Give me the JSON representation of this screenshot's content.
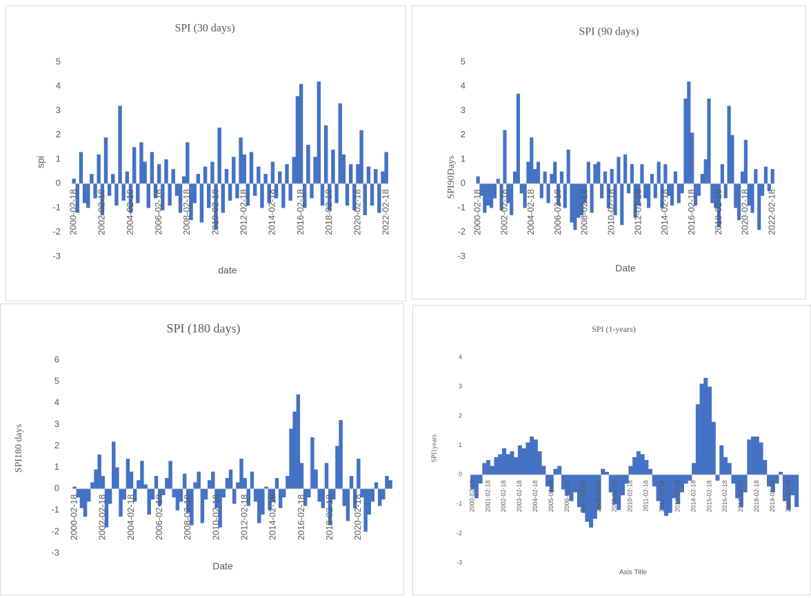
{
  "chart_data": [
    {
      "type": "bar",
      "title": "SPI (30 days)",
      "x_label": "date",
      "y_label": "spi",
      "color": "#4472c4",
      "ylim": [
        -3,
        5
      ],
      "yticks": [
        -3,
        -2,
        -1,
        0,
        1,
        2,
        3,
        4,
        5
      ],
      "categories": [
        "2000-02-18",
        null,
        null,
        null,
        null,
        null,
        null,
        null,
        "2002-02-18",
        null,
        null,
        null,
        null,
        null,
        null,
        null,
        "2004-02-18",
        null,
        null,
        null,
        null,
        null,
        null,
        null,
        "2006-02-18",
        null,
        null,
        null,
        null,
        null,
        null,
        null,
        "2008-02-18",
        null,
        null,
        null,
        null,
        null,
        null,
        null,
        "2010-02-18",
        null,
        null,
        null,
        null,
        null,
        null,
        null,
        "2012-02-18",
        null,
        null,
        null,
        null,
        null,
        null,
        null,
        "2014-02-18",
        null,
        null,
        null,
        null,
        null,
        null,
        null,
        "2016-02-18",
        null,
        null,
        null,
        null,
        null,
        null,
        null,
        "2018-02-18",
        null,
        null,
        null,
        null,
        null,
        null,
        null,
        "2020-02-18",
        null,
        null,
        null,
        null,
        null,
        null,
        null,
        "2022-02-18"
      ],
      "values": [
        0.2,
        -1.2,
        1.3,
        -0.8,
        -1.0,
        0.4,
        -0.6,
        1.2,
        -1.3,
        1.9,
        -0.5,
        0.4,
        -0.9,
        3.2,
        -0.7,
        0.5,
        -1.2,
        1.5,
        -0.8,
        1.7,
        0.9,
        -1.0,
        1.3,
        -0.6,
        0.8,
        -1.1,
        1.0,
        -0.9,
        0.6,
        -0.5,
        -1.2,
        0.3,
        1.7,
        -1.5,
        -0.8,
        0.4,
        -1.6,
        0.7,
        -1.0,
        0.9,
        -1.9,
        2.3,
        -1.2,
        0.6,
        -0.7,
        1.1,
        -0.6,
        1.9,
        1.2,
        -0.9,
        1.3,
        -0.5,
        0.7,
        -1.0,
        0.4,
        -0.8,
        0.9,
        -0.6,
        0.5,
        -1.0,
        0.8,
        -0.7,
        1.1,
        3.6,
        4.1,
        -1.0,
        1.6,
        -0.6,
        1.1,
        4.2,
        -0.9,
        2.4,
        -1.1,
        1.4,
        -0.8,
        3.3,
        1.2,
        -0.9,
        0.8,
        -1.1,
        0.8,
        2.2,
        -1.3,
        0.7,
        -0.9,
        0.6,
        -1.2,
        0.5,
        1.3
      ]
    },
    {
      "type": "bar",
      "title": "SPI (90 days)",
      "x_label": "Date",
      "y_label": "SPI90Days",
      "color": "#4472c4",
      "ylim": [
        -3,
        5
      ],
      "yticks": [
        -3,
        -2,
        -1,
        0,
        1,
        2,
        3,
        4,
        5
      ],
      "categories": [
        "2000-02-18",
        null,
        null,
        null,
        null,
        null,
        null,
        null,
        "2002-02-18",
        null,
        null,
        null,
        null,
        null,
        null,
        null,
        "2004-02-18",
        null,
        null,
        null,
        null,
        null,
        null,
        null,
        "2006-02-18",
        null,
        null,
        null,
        null,
        null,
        null,
        null,
        "2008-02-18",
        null,
        null,
        null,
        null,
        null,
        null,
        null,
        "2010-02-18",
        null,
        null,
        null,
        null,
        null,
        null,
        null,
        "2012-02-18",
        null,
        null,
        null,
        null,
        null,
        null,
        null,
        "2014-02-18",
        null,
        null,
        null,
        null,
        null,
        null,
        null,
        "2016-02-18",
        null,
        null,
        null,
        null,
        null,
        null,
        null,
        "2018-02-18",
        null,
        null,
        null,
        null,
        null,
        null,
        null,
        "2020-02-18",
        null,
        null,
        null,
        null,
        null,
        null,
        null,
        "2022-02-18"
      ],
      "values": [
        0.3,
        -0.5,
        -1.2,
        -0.9,
        -1.0,
        -0.6,
        0.2,
        -1.1,
        2.2,
        -0.8,
        -1.3,
        0.5,
        3.7,
        -0.4,
        -1.0,
        0.9,
        1.9,
        0.6,
        0.9,
        -0.6,
        0.5,
        -0.8,
        0.4,
        0.9,
        -0.9,
        0.5,
        -1.0,
        1.4,
        -1.6,
        -1.9,
        -1.4,
        -1.3,
        -0.8,
        0.9,
        -1.2,
        0.8,
        0.9,
        -0.6,
        0.5,
        -1.0,
        0.6,
        -1.3,
        1.1,
        -1.7,
        1.2,
        -0.4,
        0.8,
        -1.4,
        -0.9,
        0.8,
        -0.6,
        -1.0,
        0.4,
        -0.6,
        0.9,
        -1.0,
        0.8,
        -0.5,
        -0.9,
        0.5,
        -0.8,
        -0.4,
        3.5,
        4.2,
        2.1,
        -0.9,
        -0.5,
        0.4,
        1.0,
        3.5,
        -0.8,
        -1.0,
        -1.8,
        0.8,
        -0.6,
        3.2,
        2.0,
        -1.0,
        -1.5,
        0.5,
        1.8,
        -0.9,
        -1.2,
        0.6,
        -1.9,
        -0.5,
        0.7,
        -0.3,
        0.6
      ]
    },
    {
      "type": "bar",
      "title": "SPI (180 days)",
      "x_label": "Date",
      "y_label": "SPI180 days",
      "color": "#4472c4",
      "ylim": [
        -3,
        6
      ],
      "yticks": [
        -3,
        -2,
        -1,
        0,
        1,
        2,
        3,
        4,
        5,
        6
      ],
      "categories": [
        "2000-02-18",
        null,
        null,
        null,
        null,
        null,
        null,
        null,
        "2002-02-18",
        null,
        null,
        null,
        null,
        null,
        null,
        null,
        "2004-02-18",
        null,
        null,
        null,
        null,
        null,
        null,
        null,
        "2006-02-18",
        null,
        null,
        null,
        null,
        null,
        null,
        null,
        "2008-02-18",
        null,
        null,
        null,
        null,
        null,
        null,
        null,
        "2010-02-18",
        null,
        null,
        null,
        null,
        null,
        null,
        null,
        "2012-02-18",
        null,
        null,
        null,
        null,
        null,
        null,
        null,
        "2014-02-18",
        null,
        null,
        null,
        null,
        null,
        null,
        null,
        "2016-02-18",
        null,
        null,
        null,
        null,
        null,
        null,
        null,
        "2018-02-18",
        null,
        null,
        null,
        null,
        null,
        null,
        null,
        "2020-02-18",
        null,
        null,
        null,
        null,
        null,
        null,
        null,
        null,
        null
      ],
      "values": [
        0.1,
        -0.4,
        -0.9,
        -1.3,
        -0.6,
        0.3,
        0.9,
        1.6,
        0.6,
        -1.8,
        -0.7,
        2.2,
        1.0,
        -1.3,
        -0.5,
        1.4,
        0.8,
        -0.6,
        0.4,
        1.3,
        0.2,
        -1.2,
        -0.5,
        0.6,
        -0.8,
        -0.3,
        0.5,
        1.3,
        -0.4,
        -1.0,
        -0.6,
        0.7,
        -1.1,
        -1.7,
        0.3,
        0.8,
        -1.6,
        -0.5,
        0.4,
        0.8,
        -0.9,
        -1.8,
        -0.4,
        0.5,
        0.9,
        -0.7,
        0.3,
        1.4,
        0.5,
        -0.8,
        0.8,
        -0.6,
        -1.6,
        -1.2,
        0.1,
        -1.0,
        -0.6,
        0.5,
        -0.9,
        -0.4,
        0.6,
        2.8,
        3.6,
        4.4,
        1.2,
        -0.8,
        -0.4,
        2.4,
        0.9,
        -0.6,
        -0.9,
        1.2,
        -1.7,
        -0.5,
        2.0,
        3.2,
        -0.8,
        -1.5,
        0.6,
        -0.9,
        1.4,
        -0.4,
        -2.0,
        -1.2,
        -0.6,
        0.3,
        -0.8,
        -0.5,
        0.6,
        0.4
      ]
    },
    {
      "type": "bar",
      "title": "SPI (1-years)",
      "x_label": "Axis Title",
      "y_label": "SPI1years",
      "color": "#4472c4",
      "ylim": [
        -3,
        4
      ],
      "yticks": [
        -3,
        -2,
        -1,
        0,
        1,
        2,
        3,
        4
      ],
      "categories": [
        "2000-02-18",
        null,
        null,
        null,
        "2001-02-18",
        null,
        null,
        null,
        "2002-02-18",
        null,
        null,
        null,
        "2003-02-18",
        null,
        null,
        null,
        "2004-02-18",
        null,
        null,
        null,
        "2005-02-18",
        null,
        null,
        null,
        "2006-02-18",
        null,
        null,
        null,
        "2007-02-18",
        null,
        null,
        null,
        "2008-02-18",
        null,
        null,
        null,
        "2009-02-18",
        null,
        null,
        null,
        "2010-02-18",
        null,
        null,
        null,
        "2011-02-18",
        null,
        null,
        null,
        "2012-02-18",
        null,
        null,
        null,
        "2013-02-18",
        null,
        null,
        null,
        "2014-02-18",
        null,
        null,
        null,
        "2015-02-18",
        null,
        null,
        null,
        "2016-02-18",
        null,
        null,
        null,
        "2017-02-18",
        null,
        null,
        null,
        "2018-02-18",
        null,
        null,
        null,
        "2019-02-18",
        null,
        null,
        null,
        "2020-02-18",
        null,
        null
      ],
      "values": [
        -0.5,
        -0.8,
        -0.3,
        0.4,
        0.5,
        0.3,
        0.6,
        0.7,
        0.9,
        0.7,
        0.8,
        0.6,
        1.0,
        0.9,
        1.1,
        1.3,
        1.2,
        0.8,
        0.3,
        -0.4,
        -0.6,
        0.2,
        0.3,
        -0.5,
        -0.7,
        -0.9,
        -0.6,
        -1.1,
        -1.3,
        -1.6,
        -1.8,
        -1.5,
        -1.2,
        0.2,
        0.1,
        -0.6,
        -1.0,
        -1.2,
        -0.7,
        -0.3,
        0.3,
        0.6,
        0.8,
        0.7,
        0.5,
        0.2,
        -0.4,
        -0.9,
        -1.2,
        -1.4,
        -1.3,
        -0.8,
        -1.0,
        -0.6,
        -0.3,
        -0.2,
        0.4,
        2.4,
        3.1,
        3.3,
        3.0,
        1.8,
        -0.2,
        1.0,
        0.6,
        0.4,
        -0.3,
        -0.8,
        -1.1,
        -0.6,
        1.2,
        1.3,
        1.3,
        1.1,
        0.5,
        -0.4,
        -0.6,
        -0.3,
        0.1,
        -0.9,
        -1.2,
        -0.7,
        -1.1
      ]
    }
  ]
}
